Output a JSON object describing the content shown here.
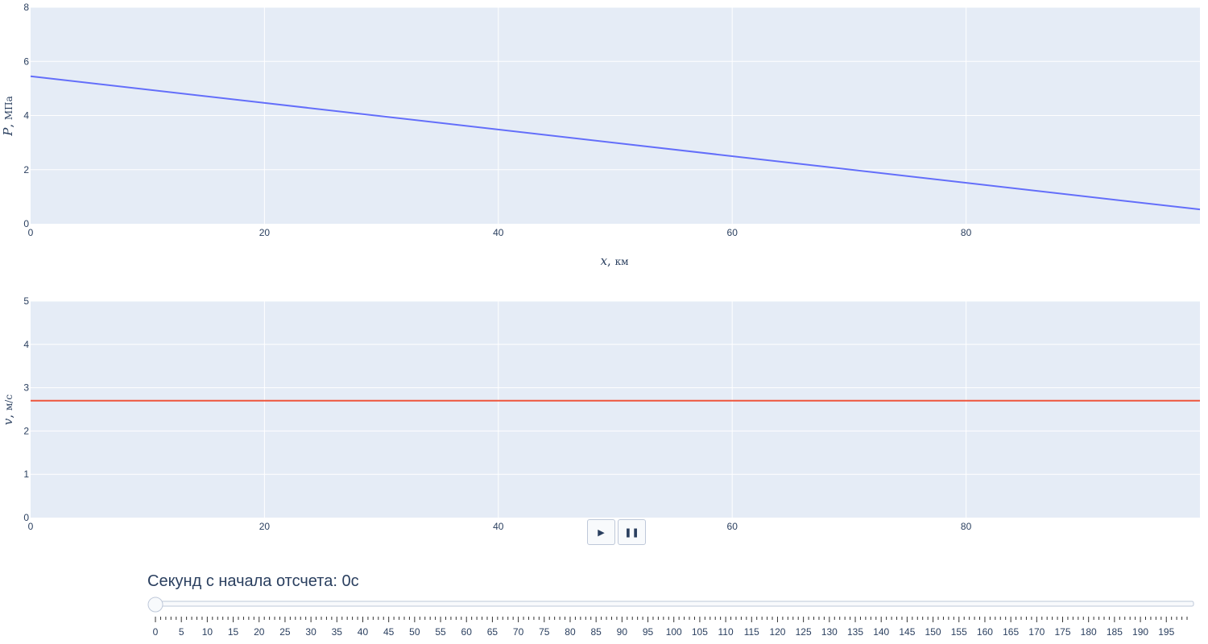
{
  "chart_data": [
    {
      "type": "line",
      "title": "",
      "xlabel": "x",
      "xlabel_unit": "км",
      "ylabel": "P",
      "ylabel_unit": "МПа",
      "xlim": [
        0,
        100
      ],
      "ylim": [
        0,
        8
      ],
      "x_ticks": [
        0,
        20,
        40,
        60,
        80
      ],
      "y_ticks": [
        0,
        2,
        4,
        6,
        8
      ],
      "grid": true,
      "series": [
        {
          "color": "#636efa",
          "x": [
            0,
            100
          ],
          "y": [
            5.45,
            0.53
          ]
        }
      ]
    },
    {
      "type": "line",
      "title": "",
      "xlabel": "",
      "ylabel": "v",
      "ylabel_unit": "м/с",
      "xlim": [
        0,
        100
      ],
      "ylim": [
        0,
        5
      ],
      "x_ticks": [
        0,
        20,
        40,
        60,
        80
      ],
      "y_ticks": [
        0,
        1,
        2,
        3,
        4,
        5
      ],
      "grid": true,
      "series": [
        {
          "color": "#ef553b",
          "x": [
            0,
            100
          ],
          "y": [
            2.7,
            2.7
          ]
        }
      ]
    }
  ],
  "controls": {
    "play_icon": "▶",
    "pause_icon": "❚❚"
  },
  "slider": {
    "prefix": "Секунд с начала отсчета: ",
    "value": "0",
    "suffix": "с",
    "min": 0,
    "max": 199,
    "labeled_step": 5,
    "current": 0
  },
  "colors": {
    "plot_bg": "#e5ecf6",
    "text": "#2a3f5f",
    "slider_border": "#bec8d9"
  }
}
